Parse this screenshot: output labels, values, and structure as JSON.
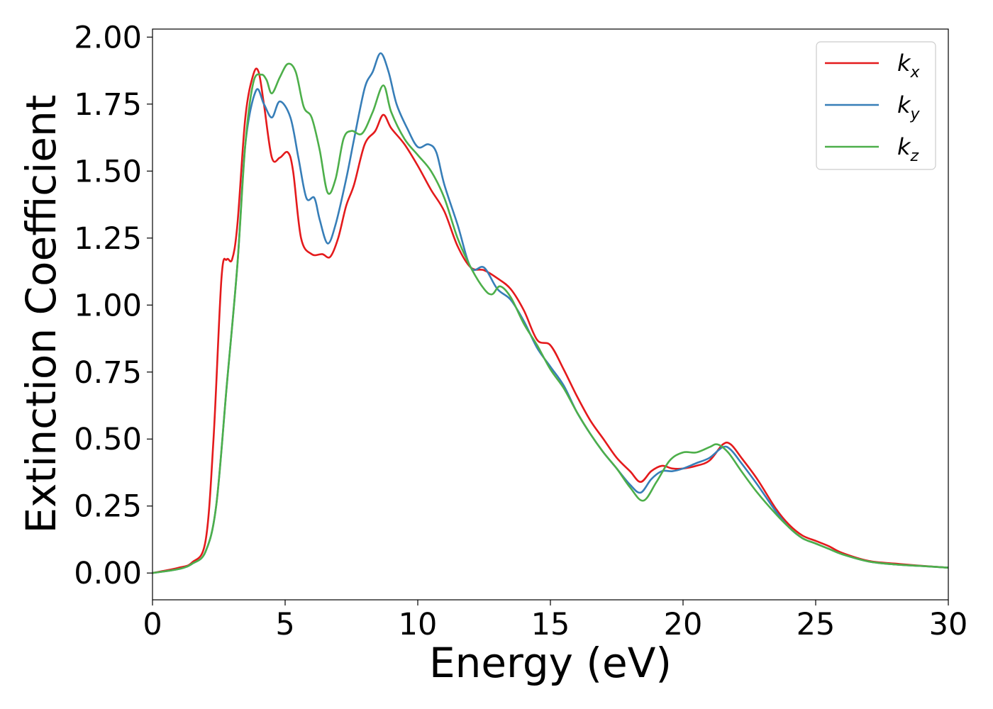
{
  "chart_data": {
    "type": "line",
    "xlabel": "Energy (eV)",
    "ylabel": "Extinction Coefficient",
    "xlim": [
      0,
      30
    ],
    "ylim": [
      -0.1,
      2.03
    ],
    "xticks": [
      "0",
      "5",
      "10",
      "15",
      "20",
      "25",
      "30"
    ],
    "yticks": [
      "0.00",
      "0.25",
      "0.50",
      "0.75",
      "1.00",
      "1.25",
      "1.50",
      "1.75",
      "2.00"
    ],
    "grid": false,
    "legend_position": "top-right",
    "series": [
      {
        "name": "k_x",
        "label_main": "k",
        "label_sub": "x",
        "color": "#e41a1c",
        "points": [
          [
            0,
            0
          ],
          [
            1,
            0.02
          ],
          [
            1.5,
            0.04
          ],
          [
            2,
            0.12
          ],
          [
            2.3,
            0.5
          ],
          [
            2.6,
            1.1
          ],
          [
            2.8,
            1.17
          ],
          [
            3,
            1.17
          ],
          [
            3.2,
            1.3
          ],
          [
            3.5,
            1.7
          ],
          [
            3.8,
            1.86
          ],
          [
            4,
            1.87
          ],
          [
            4.2,
            1.75
          ],
          [
            4.5,
            1.55
          ],
          [
            4.8,
            1.55
          ],
          [
            5.1,
            1.57
          ],
          [
            5.3,
            1.5
          ],
          [
            5.6,
            1.25
          ],
          [
            6,
            1.19
          ],
          [
            6.4,
            1.19
          ],
          [
            6.7,
            1.18
          ],
          [
            7,
            1.25
          ],
          [
            7.3,
            1.37
          ],
          [
            7.6,
            1.45
          ],
          [
            8,
            1.6
          ],
          [
            8.4,
            1.65
          ],
          [
            8.7,
            1.71
          ],
          [
            9,
            1.66
          ],
          [
            9.5,
            1.6
          ],
          [
            10,
            1.52
          ],
          [
            10.5,
            1.43
          ],
          [
            11,
            1.35
          ],
          [
            11.5,
            1.22
          ],
          [
            12,
            1.14
          ],
          [
            12.5,
            1.13
          ],
          [
            13,
            1.1
          ],
          [
            13.5,
            1.06
          ],
          [
            14,
            0.98
          ],
          [
            14.5,
            0.87
          ],
          [
            15,
            0.85
          ],
          [
            15.5,
            0.76
          ],
          [
            16,
            0.66
          ],
          [
            16.5,
            0.57
          ],
          [
            17,
            0.5
          ],
          [
            17.5,
            0.43
          ],
          [
            18,
            0.38
          ],
          [
            18.4,
            0.34
          ],
          [
            18.8,
            0.38
          ],
          [
            19.2,
            0.4
          ],
          [
            19.6,
            0.39
          ],
          [
            20,
            0.39
          ],
          [
            20.5,
            0.4
          ],
          [
            21,
            0.42
          ],
          [
            21.5,
            0.48
          ],
          [
            21.8,
            0.48
          ],
          [
            22.2,
            0.43
          ],
          [
            22.8,
            0.35
          ],
          [
            23.5,
            0.24
          ],
          [
            24,
            0.18
          ],
          [
            24.5,
            0.14
          ],
          [
            25,
            0.12
          ],
          [
            25.5,
            0.1
          ],
          [
            26,
            0.075
          ],
          [
            27,
            0.045
          ],
          [
            28,
            0.035
          ],
          [
            29,
            0.027
          ],
          [
            30,
            0.02
          ]
        ]
      },
      {
        "name": "k_y",
        "label_main": "k",
        "label_sub": "y",
        "color": "#377eb8",
        "points": [
          [
            0,
            0
          ],
          [
            1,
            0.015
          ],
          [
            1.5,
            0.035
          ],
          [
            2,
            0.08
          ],
          [
            2.4,
            0.25
          ],
          [
            2.8,
            0.7
          ],
          [
            3.2,
            1.15
          ],
          [
            3.5,
            1.6
          ],
          [
            3.9,
            1.8
          ],
          [
            4.2,
            1.75
          ],
          [
            4.5,
            1.7
          ],
          [
            4.8,
            1.76
          ],
          [
            5.2,
            1.7
          ],
          [
            5.5,
            1.55
          ],
          [
            5.8,
            1.4
          ],
          [
            6.1,
            1.4
          ],
          [
            6.3,
            1.32
          ],
          [
            6.6,
            1.23
          ],
          [
            6.9,
            1.3
          ],
          [
            7.3,
            1.47
          ],
          [
            7.6,
            1.62
          ],
          [
            8,
            1.81
          ],
          [
            8.3,
            1.87
          ],
          [
            8.6,
            1.94
          ],
          [
            8.9,
            1.87
          ],
          [
            9.2,
            1.75
          ],
          [
            9.6,
            1.66
          ],
          [
            10,
            1.59
          ],
          [
            10.4,
            1.6
          ],
          [
            10.7,
            1.57
          ],
          [
            11,
            1.45
          ],
          [
            11.5,
            1.3
          ],
          [
            12,
            1.14
          ],
          [
            12.5,
            1.14
          ],
          [
            13,
            1.06
          ],
          [
            13.5,
            1.02
          ],
          [
            14,
            0.94
          ],
          [
            14.5,
            0.84
          ],
          [
            15,
            0.77
          ],
          [
            15.5,
            0.7
          ],
          [
            16,
            0.6
          ],
          [
            16.5,
            0.52
          ],
          [
            17,
            0.45
          ],
          [
            17.5,
            0.39
          ],
          [
            18,
            0.33
          ],
          [
            18.4,
            0.3
          ],
          [
            18.8,
            0.35
          ],
          [
            19.2,
            0.38
          ],
          [
            19.6,
            0.38
          ],
          [
            20,
            0.39
          ],
          [
            20.5,
            0.41
          ],
          [
            21,
            0.43
          ],
          [
            21.5,
            0.47
          ],
          [
            21.8,
            0.46
          ],
          [
            22.2,
            0.41
          ],
          [
            22.8,
            0.33
          ],
          [
            23.5,
            0.23
          ],
          [
            24,
            0.17
          ],
          [
            24.5,
            0.13
          ],
          [
            25,
            0.11
          ],
          [
            25.5,
            0.09
          ],
          [
            26,
            0.07
          ],
          [
            27,
            0.043
          ],
          [
            28,
            0.032
          ],
          [
            29,
            0.026
          ],
          [
            30,
            0.02
          ]
        ]
      },
      {
        "name": "k_z",
        "label_main": "k",
        "label_sub": "z",
        "color": "#4daf4a",
        "points": [
          [
            0,
            0
          ],
          [
            1,
            0.015
          ],
          [
            1.5,
            0.035
          ],
          [
            2,
            0.08
          ],
          [
            2.4,
            0.25
          ],
          [
            2.8,
            0.7
          ],
          [
            3.2,
            1.15
          ],
          [
            3.5,
            1.6
          ],
          [
            3.8,
            1.83
          ],
          [
            4.1,
            1.86
          ],
          [
            4.3,
            1.84
          ],
          [
            4.5,
            1.79
          ],
          [
            4.8,
            1.85
          ],
          [
            5.1,
            1.9
          ],
          [
            5.4,
            1.87
          ],
          [
            5.7,
            1.74
          ],
          [
            6,
            1.7
          ],
          [
            6.3,
            1.58
          ],
          [
            6.6,
            1.42
          ],
          [
            6.9,
            1.47
          ],
          [
            7.2,
            1.62
          ],
          [
            7.5,
            1.65
          ],
          [
            7.9,
            1.64
          ],
          [
            8.3,
            1.72
          ],
          [
            8.7,
            1.82
          ],
          [
            9,
            1.72
          ],
          [
            9.5,
            1.62
          ],
          [
            10,
            1.56
          ],
          [
            10.5,
            1.5
          ],
          [
            11,
            1.4
          ],
          [
            11.5,
            1.25
          ],
          [
            12,
            1.14
          ],
          [
            12.5,
            1.06
          ],
          [
            12.8,
            1.04
          ],
          [
            13.1,
            1.07
          ],
          [
            13.5,
            1.03
          ],
          [
            14,
            0.93
          ],
          [
            14.5,
            0.85
          ],
          [
            15,
            0.76
          ],
          [
            15.5,
            0.69
          ],
          [
            16,
            0.6
          ],
          [
            16.5,
            0.52
          ],
          [
            17,
            0.45
          ],
          [
            17.5,
            0.39
          ],
          [
            18,
            0.32
          ],
          [
            18.5,
            0.27
          ],
          [
            19,
            0.34
          ],
          [
            19.5,
            0.42
          ],
          [
            20,
            0.45
          ],
          [
            20.5,
            0.45
          ],
          [
            21,
            0.47
          ],
          [
            21.3,
            0.48
          ],
          [
            21.7,
            0.45
          ],
          [
            22.2,
            0.38
          ],
          [
            22.8,
            0.3
          ],
          [
            23.5,
            0.22
          ],
          [
            24,
            0.17
          ],
          [
            24.5,
            0.13
          ],
          [
            25,
            0.11
          ],
          [
            25.5,
            0.09
          ],
          [
            26,
            0.07
          ],
          [
            27,
            0.043
          ],
          [
            28,
            0.032
          ],
          [
            29,
            0.026
          ],
          [
            30,
            0.02
          ]
        ]
      }
    ]
  }
}
